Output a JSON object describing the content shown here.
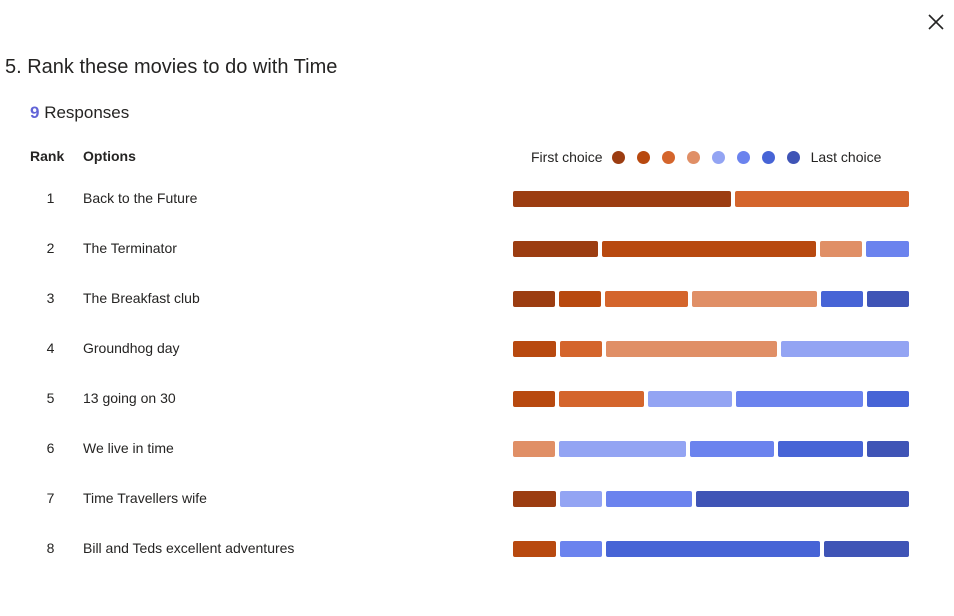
{
  "dialog": {
    "close_icon": "close-icon",
    "question_title": "5. Rank these movies to do with Time",
    "responses_count": "9",
    "responses_label": "Responses"
  },
  "table": {
    "rank_header": "Rank",
    "options_header": "Options",
    "legend": {
      "first_label": "First choice",
      "last_label": "Last choice",
      "colors": [
        "#9c3d11",
        "#b8490f",
        "#d4652c",
        "#e08f66",
        "#93a4f3",
        "#6b83ee",
        "#4764d6",
        "#3f54b6"
      ]
    }
  },
  "chart_data": {
    "type": "bar",
    "stacked": true,
    "total_responses": 9,
    "choice_levels": 8,
    "rows": [
      {
        "rank": "1",
        "option": "Back to the Future",
        "counts": [
          5,
          0,
          4,
          0,
          0,
          0,
          0,
          0
        ]
      },
      {
        "rank": "2",
        "option": "The Terminator",
        "counts": [
          2,
          5,
          0,
          1,
          0,
          1,
          0,
          0
        ]
      },
      {
        "rank": "3",
        "option": "The Breakfast club",
        "counts": [
          1,
          1,
          2,
          3,
          0,
          0,
          1,
          1
        ]
      },
      {
        "rank": "4",
        "option": "Groundhog day",
        "counts": [
          0,
          1,
          1,
          4,
          3,
          0,
          0,
          0
        ]
      },
      {
        "rank": "5",
        "option": "13 going on 30",
        "counts": [
          0,
          1,
          2,
          0,
          2,
          3,
          1,
          0
        ]
      },
      {
        "rank": "6",
        "option": "We live in time",
        "counts": [
          0,
          0,
          0,
          1,
          3,
          2,
          2,
          1
        ]
      },
      {
        "rank": "7",
        "option": "Time Travellers wife",
        "counts": [
          1,
          0,
          0,
          0,
          1,
          2,
          0,
          5
        ]
      },
      {
        "rank": "8",
        "option": "Bill and Teds excellent adventures",
        "counts": [
          0,
          1,
          0,
          0,
          0,
          1,
          5,
          2
        ]
      }
    ]
  }
}
